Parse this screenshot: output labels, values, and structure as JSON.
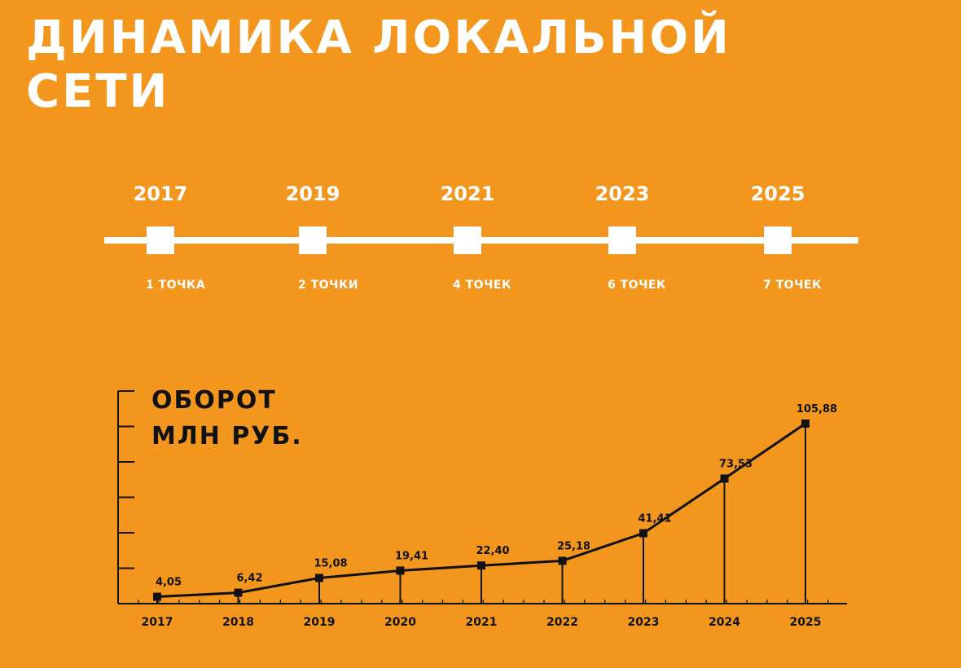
{
  "page": {
    "title_line1": "Динамика локальной",
    "title_line2": "сети",
    "background_color": "#F3961E",
    "accent_color": "#FFFFFF",
    "ink_color": "#111111"
  },
  "timeline": {
    "items": [
      {
        "year": "2017",
        "label": "1 ТОЧКА"
      },
      {
        "year": "2019",
        "label": "2 ТОЧКИ"
      },
      {
        "year": "2021",
        "label": "4 ТОЧЕК"
      },
      {
        "year": "2023",
        "label": "6 ТОЧЕК"
      },
      {
        "year": "2025",
        "label": "7 ТОЧЕК"
      }
    ]
  },
  "chart_data": {
    "type": "line",
    "title_line1": "ОБОРОТ",
    "title_line2": "МЛН РУБ.",
    "xlabel": "",
    "ylabel": "",
    "categories": [
      "2017",
      "2018",
      "2019",
      "2020",
      "2021",
      "2022",
      "2023",
      "2024",
      "2025"
    ],
    "series": [
      {
        "values": [
          4.05,
          6.42,
          15.08,
          19.41,
          22.4,
          25.18,
          41.41,
          73.53,
          105.88
        ],
        "labels": [
          "4,05",
          "6,42",
          "15,08",
          "19,41",
          "22,40",
          "25,18",
          "41,41",
          "73,53",
          "105,88"
        ]
      }
    ],
    "ylim": [
      0,
      125
    ],
    "y_ticks": [
      0,
      20.83,
      41.67,
      62.5,
      83.33,
      104.17,
      125
    ],
    "grid": false,
    "drop_lines": true,
    "legend": "none"
  }
}
